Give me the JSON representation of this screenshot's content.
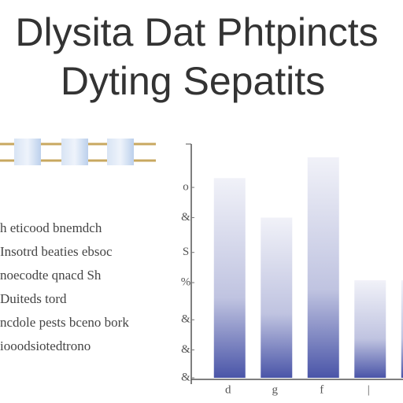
{
  "chart_data": {
    "type": "bar",
    "title": "Dlysita Dat Phtpincts",
    "subtitle": "Dyting Sepatits",
    "categories": [
      "d",
      "g",
      "f",
      "|",
      null
    ],
    "values": [
      86,
      69,
      95,
      42,
      42
    ],
    "color": "#4a55a8",
    "ylim": [
      0,
      100
    ],
    "yticks": [
      {
        "value": 82,
        "label": "o"
      },
      {
        "value": 69,
        "label": "&"
      },
      {
        "value": 54,
        "label": "S"
      },
      {
        "value": 41,
        "label": "%"
      },
      {
        "value": 25,
        "label": "&"
      },
      {
        "value": 12,
        "label": "&"
      },
      {
        "value": 0,
        "label": "&"
      }
    ]
  },
  "notes": [
    "h eticood bnemdch",
    "Insotrd beaties ebsoc",
    "noecodte qnacd Sh",
    "Duiteds tord",
    "ncdole pests bceno bork",
    "iooodsiotedtrono"
  ]
}
